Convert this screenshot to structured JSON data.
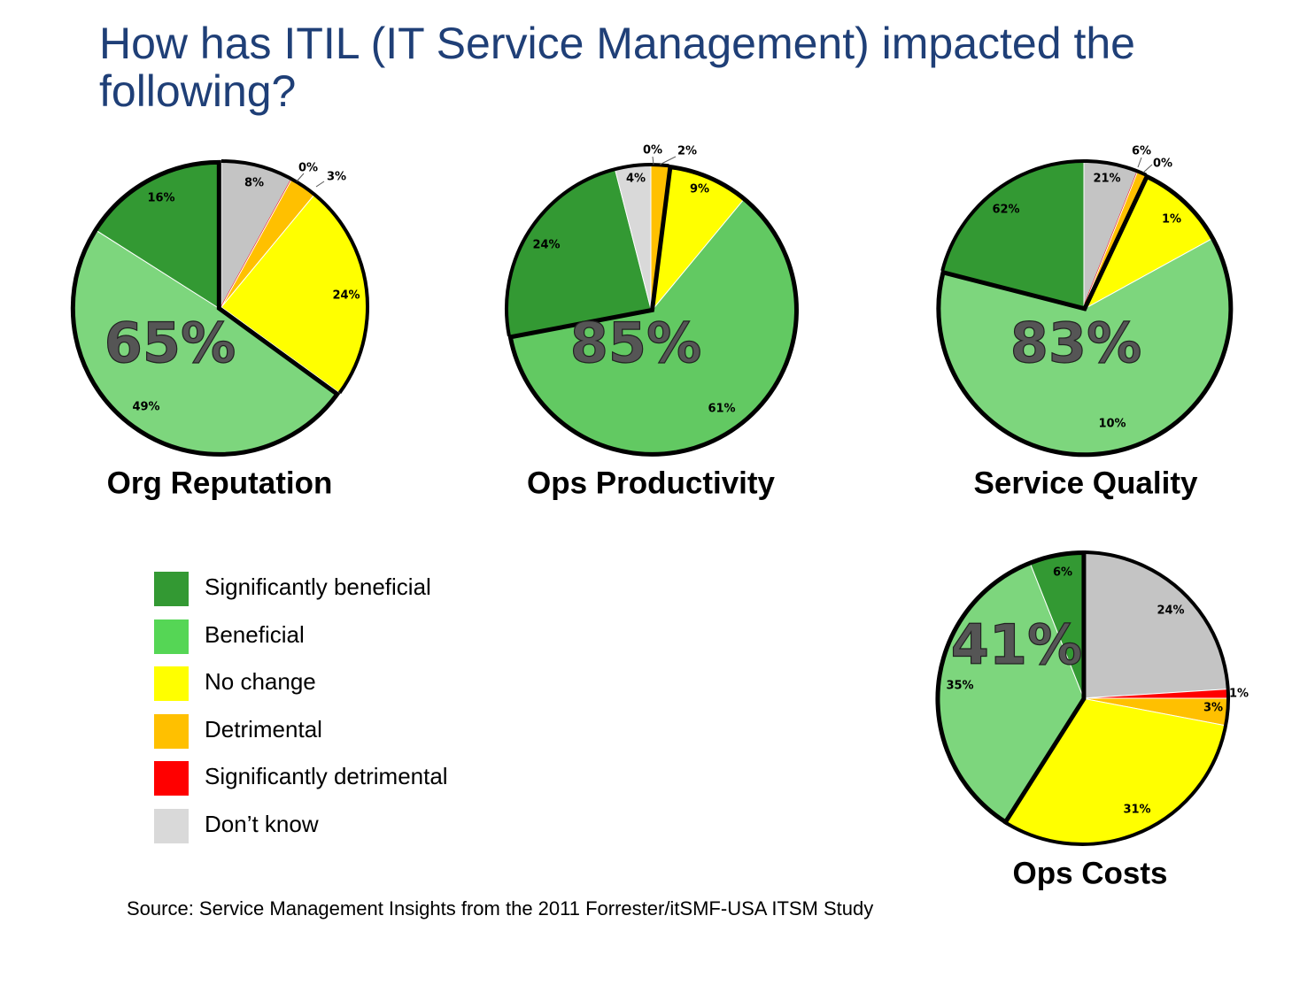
{
  "title": "How has ITIL (IT Service Management) impacted the following?",
  "source": "Source: Service Management Insights from the 2011 Forrester/itSMF-USA ITSM Study",
  "legend": [
    {
      "label": "Significantly beneficial",
      "color": "#339933"
    },
    {
      "label": "Beneficial",
      "color": "#55d655"
    },
    {
      "label": "No change",
      "color": "#ffff00"
    },
    {
      "label": "Detrimental",
      "color": "#ffc000"
    },
    {
      "label": "Significantly detrimental",
      "color": "#ff0000"
    },
    {
      "label": "Don’t know",
      "color": "#d9d9d9"
    }
  ],
  "chart_data": [
    {
      "type": "pie",
      "title": "Org Reputation",
      "highlight": "65%",
      "slices": [
        {
          "label": "Don’t know",
          "value": 8,
          "color": "#c4c4c4"
        },
        {
          "label": "Significantly detrimental",
          "value": 0,
          "color": "#ff0000"
        },
        {
          "label": "Detrimental",
          "value": 3,
          "color": "#ffc000"
        },
        {
          "label": "No change",
          "value": 24,
          "color": "#ffff00"
        },
        {
          "label": "Beneficial",
          "value": 49,
          "color": "#7dd67d"
        },
        {
          "label": "Significantly beneficial",
          "value": 16,
          "color": "#339933"
        }
      ],
      "data_labels": [
        "8%",
        "0%",
        "3%",
        "24%",
        "49%",
        "16%"
      ]
    },
    {
      "type": "pie",
      "title": "Ops Productivity",
      "highlight": "85%",
      "slices": [
        {
          "label": "Significantly detrimental",
          "value": 0,
          "color": "#ff0000"
        },
        {
          "label": "Detrimental",
          "value": 2,
          "color": "#ffc000"
        },
        {
          "label": "No change",
          "value": 9,
          "color": "#ffff00"
        },
        {
          "label": "Beneficial",
          "value": 61,
          "color": "#62c962"
        },
        {
          "label": "Significantly beneficial",
          "value": 24,
          "color": "#339933"
        },
        {
          "label": "Don’t know",
          "value": 4,
          "color": "#d9d9d9"
        }
      ],
      "data_labels": [
        "0%",
        "2%",
        "9%",
        "61%",
        "24%",
        "4%"
      ]
    },
    {
      "type": "pie",
      "title": "Service Quality",
      "highlight": "83%",
      "slices": [
        {
          "label": "Don’t know",
          "value": 6,
          "color": "#c4c4c4"
        },
        {
          "label": "Significantly detrimental",
          "value": 0,
          "color": "#ff0000"
        },
        {
          "label": "Detrimental",
          "value": 1,
          "color": "#ffc000"
        },
        {
          "label": "No change",
          "value": 10,
          "color": "#ffff00"
        },
        {
          "label": "Beneficial",
          "value": 62,
          "color": "#7dd67d"
        },
        {
          "label": "Significantly beneficial",
          "value": 21,
          "color": "#339933"
        }
      ],
      "data_labels": [
        "6%",
        "0%",
        "1%",
        "10%",
        "62%",
        "21%"
      ]
    },
    {
      "type": "pie",
      "title": "Ops Costs",
      "highlight": "41%",
      "slices": [
        {
          "label": "Don’t know",
          "value": 24,
          "color": "#c4c4c4"
        },
        {
          "label": "Significantly detrimental",
          "value": 1,
          "color": "#ff0000"
        },
        {
          "label": "Detrimental",
          "value": 3,
          "color": "#ffc000"
        },
        {
          "label": "No change",
          "value": 31,
          "color": "#ffff00"
        },
        {
          "label": "Beneficial",
          "value": 35,
          "color": "#7dd67d"
        },
        {
          "label": "Significantly beneficial",
          "value": 6,
          "color": "#339933"
        }
      ],
      "data_labels": [
        "24%",
        "1%",
        "3%",
        "31%",
        "35%",
        "6%"
      ]
    }
  ]
}
